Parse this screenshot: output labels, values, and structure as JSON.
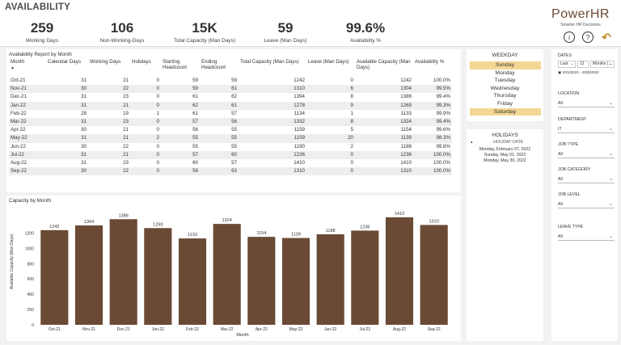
{
  "header": {
    "title": "AVAILABILITY",
    "kpis": [
      {
        "value": "259",
        "label": "Working Days"
      },
      {
        "value": "106",
        "label": "Non-Working-Days"
      },
      {
        "value": "15K",
        "label": "Total Capacity (Man Days)"
      },
      {
        "value": "59",
        "label": "Leave (Man Days)"
      },
      {
        "value": "99.6%",
        "label": "Availability %"
      }
    ],
    "brand": {
      "name": "PowerHR",
      "tagline": "Smarter HR Decisions"
    },
    "icons": [
      "info-icon",
      "help-icon",
      "back-arrow-icon"
    ]
  },
  "report": {
    "title": "Availability Report by Month",
    "columns": [
      "Month",
      "Calendar Days",
      "Working Days",
      "Holidays",
      "Starting Headcount",
      "Ending Headcount",
      "Total Capacity (Man Days)",
      "Leave (Man Days)",
      "Available Capacity (Man Days)",
      "Availability %"
    ],
    "rows": [
      [
        "Oct-21",
        "31",
        "21",
        "0",
        "59",
        "59",
        "1242",
        "0",
        "1242",
        "100.0%"
      ],
      [
        "Nov-21",
        "30",
        "22",
        "0",
        "59",
        "61",
        "1310",
        "6",
        "1304",
        "99.5%"
      ],
      [
        "Dec-21",
        "31",
        "23",
        "0",
        "61",
        "62",
        "1394",
        "8",
        "1386",
        "99.4%"
      ],
      [
        "Jan-22",
        "31",
        "21",
        "0",
        "62",
        "61",
        "1278",
        "9",
        "1269",
        "99.3%"
      ],
      [
        "Feb-22",
        "28",
        "19",
        "1",
        "61",
        "57",
        "1134",
        "1",
        "1133",
        "99.9%"
      ],
      [
        "Mar-22",
        "31",
        "23",
        "0",
        "57",
        "56",
        "1332",
        "8",
        "1324",
        "99.4%"
      ],
      [
        "Apr-22",
        "30",
        "21",
        "0",
        "56",
        "55",
        "1159",
        "5",
        "1154",
        "99.6%"
      ],
      [
        "May-22",
        "31",
        "21",
        "2",
        "55",
        "55",
        "1159",
        "20",
        "1139",
        "98.3%"
      ],
      [
        "Jun-22",
        "30",
        "22",
        "0",
        "55",
        "55",
        "1190",
        "2",
        "1188",
        "99.8%"
      ],
      [
        "Jul-22",
        "31",
        "21",
        "0",
        "57",
        "60",
        "1236",
        "0",
        "1236",
        "100.0%"
      ],
      [
        "Aug-22",
        "31",
        "23",
        "0",
        "60",
        "57",
        "1410",
        "0",
        "1410",
        "100.0%"
      ],
      [
        "Sep-22",
        "30",
        "22",
        "0",
        "58",
        "63",
        "1310",
        "0",
        "1310",
        "100.0%"
      ]
    ]
  },
  "weekday": {
    "title": "WEEKDAY",
    "items": [
      {
        "label": "Sunday",
        "selected": true
      },
      {
        "label": "Monday",
        "selected": false
      },
      {
        "label": "Tuesday",
        "selected": false
      },
      {
        "label": "Wednesday",
        "selected": false
      },
      {
        "label": "Thursday",
        "selected": false
      },
      {
        "label": "Friday",
        "selected": false
      },
      {
        "label": "Saturday",
        "selected": true
      }
    ]
  },
  "holidays": {
    "title": "HOLIDAYS",
    "column": "HOLIDAY DATE",
    "items": [
      "Monday, February 07, 2022",
      "Sunday, May 01, 2022",
      "Monday, May 30, 2022"
    ]
  },
  "filters": {
    "dates": {
      "label": "DATES",
      "mode": "Last",
      "count": "12",
      "unit": "Months (...",
      "range": "10/1/2021 - 9/30/2022"
    },
    "slicers": [
      {
        "label": "LOCATION",
        "value": "All"
      },
      {
        "label": "DEPARTMENT",
        "value": "IT"
      },
      {
        "label": "JOB TYPE",
        "value": "All"
      },
      {
        "label": "JOB CATEGORY",
        "value": "All"
      },
      {
        "label": "JOB LEVEL",
        "value": "All"
      },
      {
        "label": "LEAVE TYPE",
        "value": "All"
      }
    ]
  },
  "chart_data": {
    "type": "bar",
    "title": "Capacity by Month",
    "xlabel": "Month",
    "ylabel": "Available Capacity (Man Days)",
    "categories": [
      "Oct-21",
      "Nov-21",
      "Dec-21",
      "Jan-22",
      "Feb-22",
      "Mar-22",
      "Apr-22",
      "May-22",
      "Jun-22",
      "Jul-22",
      "Aug-22",
      "Sep-22"
    ],
    "values": [
      1242,
      1304,
      1386,
      1269,
      1133,
      1324,
      1154,
      1139,
      1188,
      1236,
      1410,
      1310
    ],
    "ylim": [
      0,
      1410
    ],
    "yticks": [
      0,
      200,
      400,
      600,
      800,
      1000,
      1200
    ],
    "grid": false,
    "bar_color": "#6b4a35"
  },
  "colors": {
    "accent": "#f4d794",
    "brand": "#6b4a35",
    "back_icon": "#c48c2c"
  }
}
